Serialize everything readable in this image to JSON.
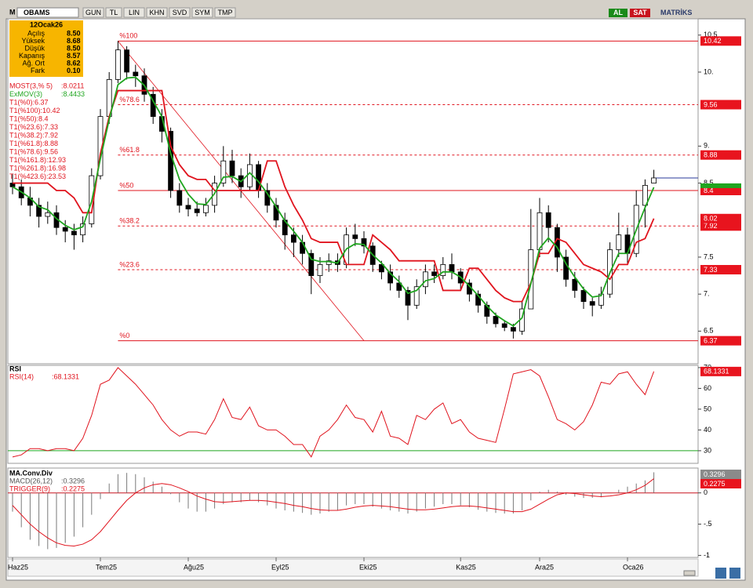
{
  "toolbar": {
    "logo": "M",
    "symbol": "OBAMS",
    "buttons": [
      "GUN",
      "TL",
      "LIN",
      "KHN",
      "SVD",
      "SYM",
      "TMP"
    ],
    "buy": "AL",
    "sell": "SAT",
    "brand": "MATRİKS"
  },
  "info": {
    "title": "12Ocak26",
    "rows": [
      [
        "Açılış",
        "8.50"
      ],
      [
        "Yüksek",
        "8.68"
      ],
      [
        "Düşük",
        "8.50"
      ],
      [
        "Kapanış",
        "8.57"
      ],
      [
        "Ağ. Ort",
        "8.62"
      ],
      [
        "Fark",
        "0.10"
      ]
    ]
  },
  "chart_data": [
    {
      "type": "candlestick",
      "categories": [
        "Haz25",
        null,
        null,
        null,
        null,
        null,
        null,
        null,
        null,
        null,
        "Tem25",
        null,
        null,
        null,
        null,
        null,
        null,
        null,
        null,
        null,
        "Ağu25",
        null,
        null,
        null,
        null,
        null,
        null,
        null,
        null,
        null,
        "Eyl25",
        null,
        null,
        null,
        null,
        null,
        null,
        null,
        null,
        null,
        "Eki25",
        null,
        null,
        null,
        null,
        null,
        null,
        null,
        null,
        null,
        null,
        "Kas25",
        null,
        null,
        null,
        null,
        null,
        null,
        null,
        null,
        "Ara25",
        null,
        null,
        null,
        null,
        null,
        null,
        null,
        null,
        null,
        "Oca26",
        null,
        null,
        null
      ],
      "open": [
        8.5,
        8.45,
        8.3,
        8.2,
        8.05,
        8.1,
        7.9,
        7.85,
        7.8,
        7.95,
        8.6,
        9.4,
        9.9,
        10.3,
        10.0,
        9.95,
        9.7,
        9.4,
        9.2,
        8.4,
        8.2,
        8.15,
        8.1,
        8.2,
        8.5,
        8.8,
        8.6,
        8.45,
        8.75,
        8.4,
        8.2,
        8.0,
        7.8,
        7.7,
        7.55,
        7.25,
        7.4,
        7.45,
        7.4,
        7.8,
        7.75,
        7.65,
        7.4,
        7.3,
        7.15,
        7.05,
        6.85,
        7.1,
        7.3,
        7.25,
        7.4,
        7.3,
        7.15,
        7.0,
        6.85,
        6.7,
        6.6,
        6.55,
        6.5,
        6.8,
        7.6,
        8.1,
        7.9,
        7.5,
        7.2,
        7.05,
        6.9,
        6.85,
        7.0,
        7.6,
        7.8,
        7.55,
        8.2,
        8.5
      ],
      "high": [
        8.62,
        8.55,
        8.45,
        8.3,
        8.25,
        8.2,
        8.0,
        7.95,
        8.05,
        8.7,
        9.5,
        10.0,
        10.42,
        10.35,
        10.1,
        10.05,
        9.8,
        9.5,
        9.25,
        8.5,
        8.3,
        8.25,
        8.3,
        8.6,
        9.0,
        8.95,
        8.7,
        8.9,
        8.8,
        8.5,
        8.3,
        8.1,
        7.9,
        7.8,
        7.6,
        7.5,
        7.55,
        7.55,
        7.9,
        7.95,
        7.85,
        7.7,
        7.45,
        7.4,
        7.25,
        7.1,
        7.2,
        7.4,
        7.4,
        7.5,
        7.55,
        7.35,
        7.2,
        7.05,
        6.9,
        6.75,
        6.65,
        6.6,
        6.9,
        8.15,
        8.3,
        8.2,
        7.95,
        7.6,
        7.3,
        7.1,
        6.95,
        7.1,
        7.7,
        8.1,
        7.9,
        8.4,
        8.55,
        8.68
      ],
      "low": [
        8.35,
        8.2,
        8.05,
        7.9,
        7.95,
        7.8,
        7.7,
        7.6,
        7.7,
        7.9,
        8.55,
        9.3,
        9.85,
        9.9,
        9.8,
        9.6,
        9.3,
        9.05,
        8.3,
        8.1,
        8.05,
        8.05,
        8.05,
        8.1,
        8.45,
        8.5,
        8.3,
        8.4,
        8.3,
        8.1,
        7.9,
        7.6,
        7.5,
        7.4,
        7.0,
        7.15,
        7.3,
        7.3,
        7.35,
        7.65,
        7.55,
        7.3,
        7.2,
        7.05,
        6.95,
        6.65,
        6.8,
        7.0,
        7.15,
        7.2,
        7.2,
        7.05,
        6.9,
        6.75,
        6.6,
        6.55,
        6.5,
        6.4,
        6.45,
        6.8,
        7.5,
        7.7,
        7.3,
        7.1,
        6.95,
        6.8,
        6.7,
        6.8,
        6.95,
        7.5,
        7.4,
        7.5,
        7.9,
        8.5
      ],
      "close": [
        8.45,
        8.3,
        8.2,
        8.05,
        8.1,
        7.9,
        7.85,
        7.8,
        7.95,
        8.6,
        9.4,
        9.9,
        10.3,
        10.0,
        9.95,
        9.7,
        9.4,
        9.2,
        8.4,
        8.2,
        8.15,
        8.1,
        8.2,
        8.5,
        8.8,
        8.6,
        8.45,
        8.75,
        8.4,
        8.2,
        8.0,
        7.8,
        7.7,
        7.55,
        7.25,
        7.4,
        7.45,
        7.4,
        7.8,
        7.75,
        7.65,
        7.4,
        7.3,
        7.15,
        7.05,
        6.85,
        7.1,
        7.3,
        7.25,
        7.4,
        7.3,
        7.15,
        7.0,
        6.85,
        6.7,
        6.6,
        6.55,
        6.5,
        6.8,
        7.6,
        8.1,
        7.9,
        7.5,
        7.2,
        7.05,
        6.9,
        6.85,
        7.0,
        7.6,
        7.8,
        7.55,
        8.2,
        8.47,
        8.57
      ],
      "series": [
        {
          "name": "MOST(3,% 5)",
          "color": "#e0141e",
          "value_label": ":8.0211",
          "last_label": "8.02",
          "values": [
            8.5,
            8.5,
            8.5,
            8.5,
            8.5,
            8.4,
            8.4,
            8.3,
            8.1,
            8.1,
            8.9,
            9.4,
            9.75,
            9.75,
            9.75,
            9.75,
            9.75,
            9.75,
            9.0,
            8.75,
            8.6,
            8.55,
            8.55,
            8.4,
            8.4,
            8.4,
            8.4,
            8.4,
            8.4,
            8.8,
            8.8,
            8.45,
            8.2,
            8.0,
            7.75,
            7.7,
            7.7,
            7.7,
            7.4,
            7.4,
            7.4,
            7.8,
            7.7,
            7.6,
            7.45,
            7.45,
            7.45,
            7.45,
            7.45,
            7.05,
            7.05,
            7.05,
            7.35,
            7.35,
            7.2,
            7.05,
            6.95,
            6.9,
            6.9,
            7.15,
            7.55,
            7.55,
            7.75,
            7.7,
            7.55,
            7.4,
            7.35,
            7.3,
            7.2,
            7.4,
            7.4,
            7.7,
            7.75,
            8.0211
          ]
        },
        {
          "name": "ExMOV(3)",
          "color": "#1fa51f",
          "value_label": ":8.4433",
          "values": [
            8.45,
            8.38,
            8.3,
            8.18,
            8.14,
            8.02,
            7.93,
            7.87,
            7.91,
            8.25,
            8.83,
            9.36,
            9.83,
            9.92,
            9.93,
            9.82,
            9.61,
            9.4,
            8.9,
            8.55,
            8.35,
            8.22,
            8.21,
            8.36,
            8.58,
            8.59,
            8.52,
            8.64,
            8.52,
            8.36,
            8.18,
            7.99,
            7.85,
            7.7,
            7.47,
            7.44,
            7.44,
            7.42,
            7.61,
            7.68,
            7.67,
            7.53,
            7.42,
            7.28,
            7.17,
            7.01,
            7.05,
            7.18,
            7.21,
            7.3,
            7.3,
            7.23,
            7.11,
            6.98,
            6.84,
            6.72,
            6.64,
            6.57,
            6.68,
            7.14,
            7.62,
            7.76,
            7.63,
            7.41,
            7.23,
            7.07,
            6.96,
            6.98,
            7.29,
            7.55,
            7.55,
            7.87,
            8.17,
            8.4433
          ]
        }
      ],
      "fib": {
        "span": [
          12,
          40
        ],
        "color": "#e0141e",
        "levels": [
          {
            "label": "%100",
            "value": 10.42,
            "dashed": false
          },
          {
            "label": "%78.6",
            "value": 9.56,
            "dashed": true
          },
          {
            "label": "%61.8",
            "value": 8.88,
            "dashed": true
          },
          {
            "label": "%50",
            "value": 8.4,
            "dashed": false
          },
          {
            "label": "%38.2",
            "value": 7.92,
            "dashed": true
          },
          {
            "label": "%23.6",
            "value": 7.33,
            "dashed": true
          },
          {
            "label": "%0",
            "value": 6.37,
            "dashed": false
          }
        ]
      },
      "notes": [
        "T1(%0):6.37",
        "T1(%100):10.42",
        "T1(%50):8.4",
        "T1(%23.6):7.33",
        "T1(%38.2):7.92",
        "T1(%61.8):8.88",
        "T1(%78.6):9.56",
        "T1(%161.8):12.93",
        "T1(%261.8):16.98",
        "T1(%423.6):23.53"
      ],
      "ylim": [
        6.08,
        10.72
      ],
      "yticks": [
        6.5,
        {
          "value": 7,
          "label": "7."
        },
        7.5,
        8.5,
        {
          "value": 9,
          "label": "9."
        },
        {
          "value": 10,
          "label": "10."
        },
        10.5
      ]
    },
    {
      "type": "line",
      "title": "RSI",
      "series": [
        {
          "name": "RSI(14)",
          "color": "#e0141e",
          "value_label": ":68.1331",
          "last_label": "68.1331",
          "values": [
            27,
            28,
            31,
            31,
            30,
            31,
            31,
            30,
            36,
            47,
            62,
            64,
            70,
            66,
            62,
            57,
            52,
            45,
            40,
            37,
            39,
            39,
            38,
            45,
            55,
            46,
            45,
            51,
            42,
            40,
            40,
            37,
            33,
            33,
            27,
            37,
            40,
            45,
            52,
            46,
            45,
            39,
            49,
            37,
            36,
            33,
            47,
            45,
            50,
            53,
            43,
            45,
            39,
            36,
            35,
            34,
            50,
            67,
            68,
            69,
            66,
            56,
            45,
            43,
            40,
            44,
            52,
            63,
            62,
            67,
            68,
            62,
            57,
            68.1331
          ]
        }
      ],
      "level": 30,
      "level_color": "#1fa51f",
      "ylim": [
        24.3,
        71.1
      ],
      "yticks": [
        30,
        40,
        50,
        60,
        70
      ]
    },
    {
      "type": "macd",
      "title": "MA.Conv.Div",
      "series": [
        {
          "name": "MACD(26,12)",
          "color": "#7a7a7a",
          "value_label": ":0.3296",
          "last_label": "0.3296",
          "values": [
            -0.3,
            -0.55,
            -0.75,
            -0.85,
            -0.9,
            -0.88,
            -0.8,
            -0.7,
            -0.55,
            -0.35,
            -0.1,
            0.15,
            0.3,
            0.32,
            0.3,
            0.25,
            0.18,
            0.1,
            -0.02,
            -0.15,
            -0.25,
            -0.3,
            -0.3,
            -0.25,
            -0.18,
            -0.15,
            -0.15,
            -0.12,
            -0.15,
            -0.2,
            -0.25,
            -0.28,
            -0.3,
            -0.32,
            -0.35,
            -0.33,
            -0.3,
            -0.28,
            -0.2,
            -0.18,
            -0.18,
            -0.22,
            -0.25,
            -0.28,
            -0.3,
            -0.33,
            -0.3,
            -0.25,
            -0.22,
            -0.18,
            -0.18,
            -0.2,
            -0.23,
            -0.27,
            -0.3,
            -0.32,
            -0.33,
            -0.33,
            -0.28,
            -0.12,
            0.02,
            0.05,
            0.02,
            -0.03,
            -0.06,
            -0.08,
            -0.08,
            -0.07,
            0.0,
            0.05,
            0.1,
            0.15,
            0.2,
            0.3296
          ]
        },
        {
          "name": "TRIGGER(9)",
          "color": "#e0141e",
          "value_label": ":0.2275",
          "last_label": "0.2275",
          "values": [
            -0.2,
            -0.35,
            -0.5,
            -0.62,
            -0.72,
            -0.8,
            -0.84,
            -0.85,
            -0.82,
            -0.75,
            -0.62,
            -0.45,
            -0.28,
            -0.12,
            0.0,
            0.08,
            0.13,
            0.15,
            0.13,
            0.08,
            0.02,
            -0.05,
            -0.1,
            -0.14,
            -0.15,
            -0.14,
            -0.13,
            -0.12,
            -0.12,
            -0.13,
            -0.15,
            -0.17,
            -0.2,
            -0.22,
            -0.25,
            -0.27,
            -0.28,
            -0.28,
            -0.26,
            -0.23,
            -0.21,
            -0.2,
            -0.21,
            -0.22,
            -0.24,
            -0.26,
            -0.27,
            -0.27,
            -0.26,
            -0.24,
            -0.22,
            -0.21,
            -0.21,
            -0.22,
            -0.24,
            -0.26,
            -0.28,
            -0.3,
            -0.3,
            -0.26,
            -0.18,
            -0.1,
            -0.03,
            0.0,
            -0.01,
            -0.03,
            -0.05,
            -0.06,
            -0.05,
            -0.03,
            0.0,
            0.05,
            0.12,
            0.2275
          ]
        }
      ],
      "ylim": [
        -1.02,
        0.385
      ],
      "yticks": [
        {
          "value": -1,
          "label": "-1"
        },
        {
          "value": -0.5,
          "label": "-.5"
        },
        0
      ]
    }
  ]
}
